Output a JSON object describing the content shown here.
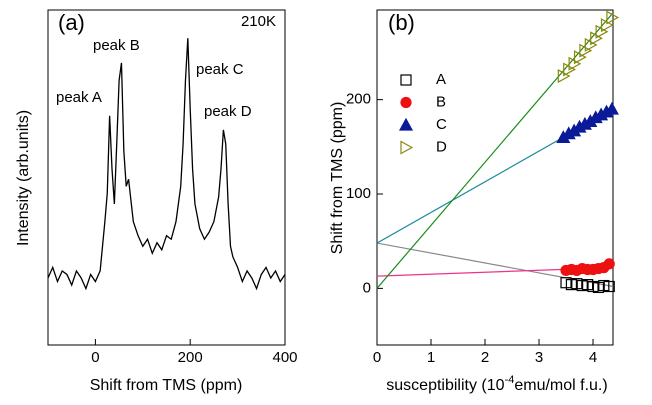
{
  "chart_data": [
    {
      "type": "line",
      "title": "(a)",
      "annotations": [
        "210K",
        "peak A",
        "peak B",
        "peak C",
        "peak D"
      ],
      "xlabel": "Shift from TMS (ppm)",
      "ylabel": "Intensity (arb.units)",
      "x": [
        -100,
        -90,
        -80,
        -70,
        -60,
        -50,
        -40,
        -30,
        -20,
        -10,
        0,
        10,
        20,
        25,
        30,
        35,
        40,
        45,
        50,
        55,
        60,
        65,
        70,
        80,
        90,
        100,
        110,
        120,
        130,
        140,
        150,
        160,
        170,
        180,
        185,
        190,
        195,
        200,
        205,
        210,
        220,
        230,
        240,
        250,
        260,
        265,
        270,
        275,
        280,
        285,
        290,
        300,
        310,
        320,
        330,
        340,
        350,
        360,
        370,
        380,
        390,
        400
      ],
      "values": [
        0.24,
        0.27,
        0.23,
        0.26,
        0.25,
        0.22,
        0.26,
        0.24,
        0.21,
        0.25,
        0.23,
        0.26,
        0.4,
        0.48,
        0.7,
        0.55,
        0.45,
        0.62,
        0.8,
        0.85,
        0.6,
        0.5,
        0.52,
        0.4,
        0.36,
        0.33,
        0.35,
        0.31,
        0.34,
        0.32,
        0.36,
        0.35,
        0.4,
        0.5,
        0.62,
        0.8,
        0.92,
        0.72,
        0.55,
        0.45,
        0.38,
        0.35,
        0.37,
        0.4,
        0.47,
        0.55,
        0.66,
        0.62,
        0.45,
        0.33,
        0.3,
        0.27,
        0.23,
        0.26,
        0.24,
        0.21,
        0.25,
        0.27,
        0.24,
        0.26,
        0.23,
        0.25
      ],
      "color": "#000000",
      "xlim": [
        -100,
        400
      ],
      "xticks": [
        0,
        200,
        400
      ],
      "ylim": [
        0.05,
        1.0
      ]
    },
    {
      "type": "scatter",
      "title": "(b)",
      "xlabel": [
        "susceptibility (10",
        "-4",
        "emu/mol f.u.)"
      ],
      "ylabel": "Shift from TMS (ppm)",
      "xlim": [
        0,
        4.37
      ],
      "xticks": [
        0,
        1,
        2,
        3,
        4
      ],
      "ylim": [
        -60,
        295
      ],
      "yticks": [
        0,
        100,
        200
      ],
      "series": [
        {
          "name": "A",
          "color": "#000000",
          "marker": "square-open",
          "x": [
            3.5,
            3.6,
            3.7,
            3.8,
            3.9,
            4.0,
            4.1,
            4.2,
            4.3
          ],
          "values": [
            6,
            4,
            5,
            3,
            4,
            2,
            1,
            3,
            2
          ]
        },
        {
          "name": "B",
          "color": "#ee1111",
          "marker": "circle",
          "x": [
            3.5,
            3.6,
            3.7,
            3.8,
            3.9,
            4.0,
            4.1,
            4.2,
            4.3
          ],
          "values": [
            19,
            20,
            19,
            21,
            20,
            20,
            21,
            22,
            26
          ]
        },
        {
          "name": "C",
          "color": "#0a1a99",
          "marker": "triangle-up",
          "x": [
            3.45,
            3.55,
            3.65,
            3.75,
            3.85,
            3.95,
            4.05,
            4.15,
            4.25,
            4.35
          ],
          "values": [
            160,
            164,
            167,
            171,
            174,
            177,
            181,
            184,
            187,
            190
          ]
        },
        {
          "name": "D",
          "color": "#8a8a10",
          "marker": "triangle-right-open",
          "x": [
            3.45,
            3.55,
            3.65,
            3.75,
            3.85,
            3.95,
            4.05,
            4.15,
            4.25,
            4.35
          ],
          "values": [
            225,
            232,
            238,
            245,
            252,
            258,
            265,
            272,
            279,
            287
          ]
        }
      ],
      "fits": [
        {
          "color": "#888888",
          "x": [
            0,
            4.37
          ],
          "values": [
            48,
            2
          ]
        },
        {
          "color": "#ee3388",
          "x": [
            0,
            4.37
          ],
          "values": [
            13,
            22
          ]
        },
        {
          "color": "#1a8a9a",
          "x": [
            0,
            4.37
          ],
          "values": [
            48,
            190
          ]
        },
        {
          "color": "#1a8a1a",
          "x": [
            0,
            4.37
          ],
          "values": [
            0,
            292
          ]
        }
      ]
    }
  ]
}
